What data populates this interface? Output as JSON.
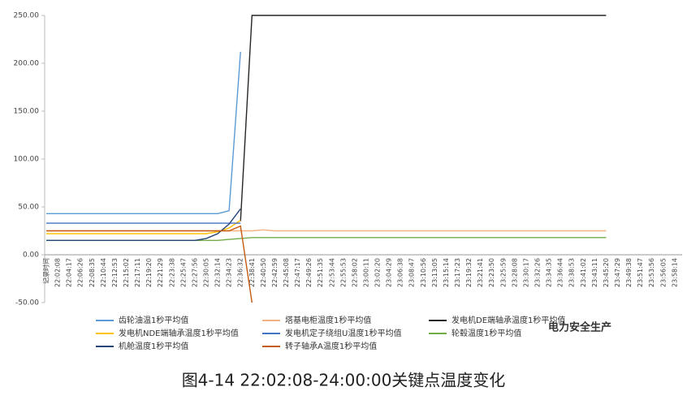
{
  "chart_data": {
    "type": "line",
    "categories": [
      "记录时间",
      "22:02:08",
      "22:04:17",
      "22:06:26",
      "22:08:35",
      "22:10:44",
      "22:12:53",
      "22:15:02",
      "22:17:11",
      "22:19:20",
      "22:21:29",
      "22:23:38",
      "22:25:47",
      "22:27:56",
      "22:30:05",
      "22:32:14",
      "22:34:23",
      "22:36:32",
      "22:38:41",
      "22:40:50",
      "22:42:59",
      "22:45:08",
      "22:47:17",
      "22:49:26",
      "22:51:35",
      "22:53:44",
      "22:55:53",
      "22:58:02",
      "23:00:11",
      "23:02:20",
      "23:04:29",
      "23:06:38",
      "23:08:47",
      "23:10:56",
      "23:13:05",
      "23:15:14",
      "23:17:23",
      "23:19:32",
      "23:21:41",
      "23:23:50",
      "23:25:59",
      "23:28:08",
      "23:30:17",
      "23:32:26",
      "23:34:35",
      "23:36:44",
      "23:38:53",
      "23:41:02",
      "23:43:11",
      "23:45:20",
      "23:47:29",
      "23:49:38",
      "23:51:47",
      "23:53:56",
      "23:56:05",
      "23:58:14"
    ],
    "series": [
      {
        "name": "齿轮油温1秒平均值",
        "color": "#5b9bd5",
        "values": [
          43,
          43,
          43,
          43,
          43,
          43,
          43,
          43,
          43,
          43,
          43,
          43,
          43,
          43,
          43,
          43,
          46,
          212,
          null,
          null,
          null,
          null,
          null,
          null,
          null,
          null,
          null,
          null,
          null,
          null,
          null,
          null,
          null,
          null,
          null,
          null,
          null,
          null,
          null,
          null,
          null,
          null,
          null,
          null,
          null,
          null,
          null,
          null,
          null,
          null,
          null,
          null,
          null,
          null,
          null,
          null
        ]
      },
      {
        "name": "塔基电柜温度1秒平均值",
        "color": "#f4b183",
        "values": [
          25,
          25,
          25,
          25,
          25,
          25,
          25,
          25,
          25,
          25,
          25,
          25,
          25,
          25,
          25,
          25,
          25,
          25,
          25,
          26,
          25,
          25,
          25,
          25,
          25,
          25,
          25,
          25,
          25,
          25,
          25,
          25,
          25,
          25,
          25,
          25,
          25,
          25,
          25,
          25,
          25,
          25,
          25,
          25,
          25,
          25,
          25,
          25,
          25,
          25,
          null,
          null,
          null,
          null,
          null,
          null
        ]
      },
      {
        "name": "发电机DE端轴承温度1秒平均值",
        "color": "#262626",
        "values": [
          null,
          null,
          null,
          null,
          null,
          null,
          null,
          null,
          null,
          null,
          null,
          null,
          null,
          null,
          null,
          null,
          null,
          35,
          250,
          250,
          250,
          250,
          250,
          250,
          250,
          250,
          250,
          250,
          250,
          250,
          250,
          250,
          250,
          250,
          250,
          250,
          250,
          250,
          250,
          250,
          250,
          250,
          250,
          250,
          250,
          250,
          250,
          250,
          250,
          250,
          null,
          null,
          null,
          null,
          null,
          null
        ]
      },
      {
        "name": "发电机NDE端轴承温度1秒平均值",
        "color": "#ffc000",
        "values": [
          22,
          22,
          22,
          22,
          22,
          22,
          22,
          22,
          22,
          22,
          22,
          22,
          22,
          22,
          22,
          24,
          28,
          36,
          null,
          null,
          null,
          null,
          null,
          null,
          null,
          null,
          null,
          null,
          null,
          null,
          null,
          null,
          null,
          null,
          null,
          null,
          null,
          null,
          null,
          null,
          null,
          null,
          null,
          null,
          null,
          null,
          null,
          null,
          null,
          null,
          null,
          null,
          null,
          null,
          null,
          null
        ]
      },
      {
        "name": "发电机定子绕组U温度1秒平均值",
        "color": "#4472c4",
        "values": [
          33,
          33,
          33,
          33,
          33,
          33,
          33,
          33,
          33,
          33,
          33,
          33,
          33,
          33,
          33,
          33,
          33,
          33,
          null,
          null,
          null,
          null,
          null,
          null,
          null,
          null,
          null,
          null,
          null,
          null,
          null,
          null,
          null,
          null,
          null,
          null,
          null,
          null,
          null,
          null,
          null,
          null,
          null,
          null,
          null,
          null,
          null,
          null,
          null,
          null,
          null,
          null,
          null,
          null,
          null,
          null
        ]
      },
      {
        "name": "轮毂温度1秒平均值",
        "color": "#70ad47",
        "values": [
          15,
          15,
          15,
          15,
          15,
          15,
          15,
          15,
          15,
          15,
          15,
          15,
          15,
          15,
          15,
          15,
          16,
          17,
          18,
          18,
          18,
          18,
          18,
          18,
          18,
          18,
          18,
          18,
          18,
          18,
          18,
          18,
          18,
          18,
          18,
          18,
          18,
          18,
          18,
          18,
          18,
          18,
          18,
          18,
          18,
          18,
          18,
          18,
          18,
          18,
          null,
          null,
          null,
          null,
          null,
          null
        ]
      },
      {
        "name": "机舱温度1秒平均值",
        "color": "#264478",
        "values": [
          15,
          15,
          15,
          15,
          15,
          15,
          15,
          15,
          15,
          15,
          15,
          15,
          15,
          15,
          17,
          22,
          32,
          48,
          null,
          null,
          null,
          null,
          null,
          null,
          null,
          null,
          null,
          null,
          null,
          null,
          null,
          null,
          null,
          null,
          null,
          null,
          null,
          null,
          null,
          null,
          null,
          null,
          null,
          null,
          null,
          null,
          null,
          null,
          null,
          null,
          null,
          null,
          null,
          null,
          null,
          null
        ]
      },
      {
        "name": "转子轴承A温度1秒平均值",
        "color": "#c55a11",
        "values": [
          25,
          25,
          25,
          25,
          25,
          25,
          25,
          25,
          25,
          25,
          25,
          25,
          25,
          25,
          25,
          25,
          25,
          30,
          -50,
          null,
          null,
          null,
          null,
          null,
          null,
          null,
          null,
          null,
          null,
          null,
          null,
          null,
          null,
          null,
          null,
          null,
          null,
          null,
          null,
          null,
          null,
          null,
          null,
          null,
          null,
          null,
          null,
          null,
          null,
          null,
          null,
          null,
          null,
          null,
          null,
          null
        ]
      }
    ],
    "ylim": [
      -50,
      250
    ],
    "yticks": [
      {
        "value": -50,
        "label": "-50.00"
      },
      {
        "value": 0,
        "label": "0.00"
      },
      {
        "value": 50,
        "label": "50.00"
      },
      {
        "value": 100,
        "label": "100.00"
      },
      {
        "value": 150,
        "label": "150.00"
      },
      {
        "value": 200,
        "label": "200.00"
      },
      {
        "value": 250,
        "label": "250.00"
      }
    ],
    "grid": false
  },
  "caption": "图4-14 22:02:08-24:00:00关键点温度变化",
  "watermark": "电力安全生产"
}
